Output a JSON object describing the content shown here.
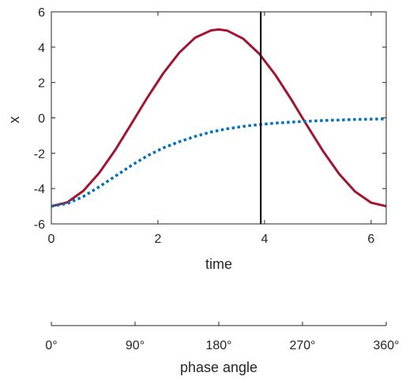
{
  "chart_data": [
    {
      "type": "line",
      "xlabel": "time",
      "ylabel": "x",
      "xlim": [
        0,
        6.2832
      ],
      "ylim": [
        -6,
        6
      ],
      "xticks": [
        "0",
        "2",
        "4",
        "6"
      ],
      "xtick_values": [
        0,
        2,
        4,
        6
      ],
      "yticks": [
        "6",
        "4",
        "2",
        "0",
        "-2",
        "-4",
        "-6"
      ],
      "ytick_values": [
        6,
        4,
        2,
        0,
        -2,
        -4,
        -6
      ],
      "grid": false,
      "vertical_marker_x": 3.93,
      "series": [
        {
          "style": "solid",
          "color": "#a2142f",
          "x": [
            0,
            0.3,
            0.6,
            0.9,
            1.2,
            1.5,
            1.8,
            2.1,
            2.4,
            2.7,
            3.0,
            3.1416,
            3.3,
            3.6,
            3.9,
            4.2,
            4.5,
            4.8,
            5.1,
            5.4,
            5.7,
            6.0,
            6.2832
          ],
          "y": [
            -5.0,
            -4.78,
            -4.13,
            -3.11,
            -1.81,
            -0.35,
            1.14,
            2.52,
            3.69,
            4.54,
            4.95,
            5.0,
            4.94,
            4.48,
            3.63,
            2.45,
            1.05,
            -0.44,
            -1.89,
            -3.17,
            -4.17,
            -4.8,
            -5.0
          ]
        },
        {
          "style": "dotted",
          "color": "#0072bd",
          "x": [
            0,
            0.3,
            0.6,
            0.9,
            1.2,
            1.5,
            1.8,
            2.1,
            2.4,
            2.7,
            3.0,
            3.3,
            3.6,
            3.9,
            4.2,
            4.5,
            4.8,
            5.1,
            5.4,
            5.7,
            6.0,
            6.2832
          ],
          "y": [
            -5.0,
            -4.85,
            -4.45,
            -3.9,
            -3.3,
            -2.7,
            -2.15,
            -1.7,
            -1.35,
            -1.05,
            -0.8,
            -0.62,
            -0.48,
            -0.38,
            -0.3,
            -0.24,
            -0.19,
            -0.15,
            -0.12,
            -0.09,
            -0.07,
            -0.06
          ]
        }
      ]
    },
    {
      "type": "axis",
      "xlabel": "phase angle",
      "xlim": [
        0,
        360
      ],
      "xticks": [
        "0°",
        "90°",
        "180°",
        "270°",
        "360°"
      ],
      "xtick_values": [
        0,
        90,
        180,
        270,
        360
      ]
    }
  ]
}
